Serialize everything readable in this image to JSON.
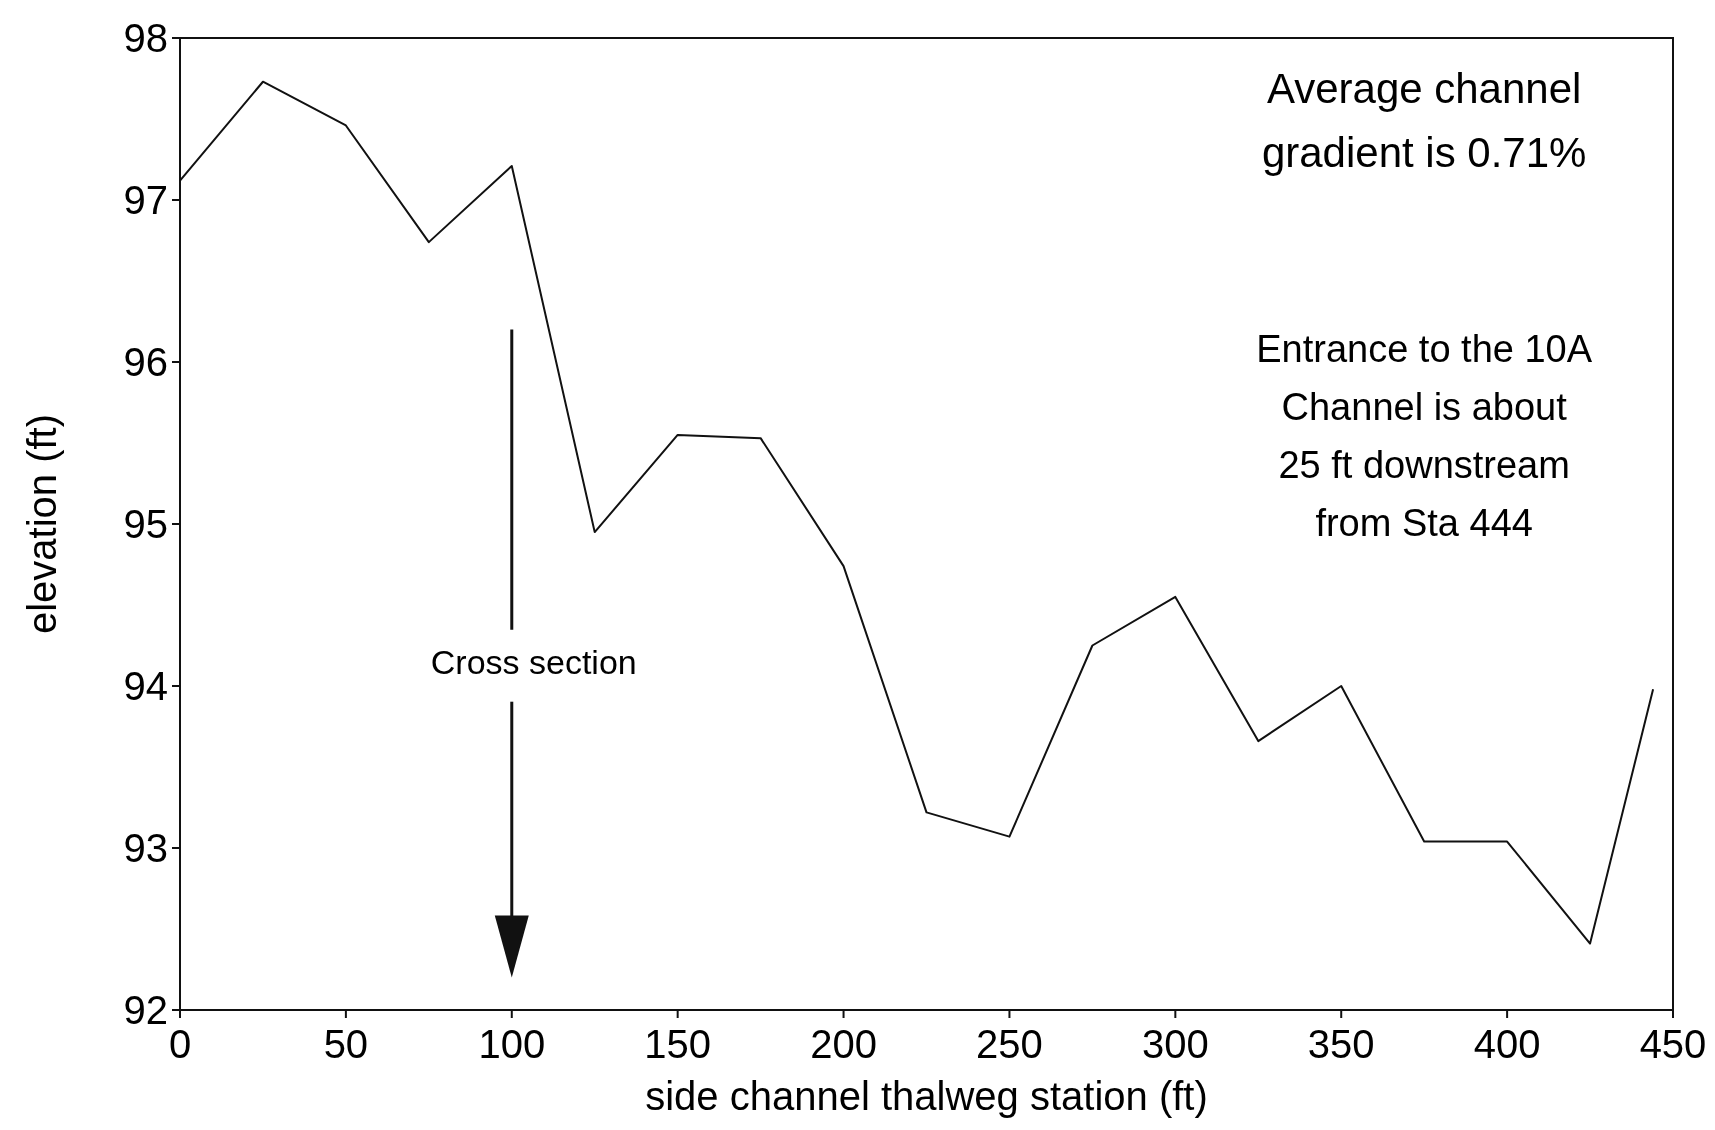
{
  "chart_data": {
    "type": "line",
    "xlabel": "side channel thalweg station (ft)",
    "ylabel": "elevation (ft)",
    "x": [
      0,
      25,
      50,
      75,
      100,
      125,
      150,
      175,
      200,
      225,
      250,
      275,
      300,
      325,
      350,
      375,
      400,
      425,
      444
    ],
    "series": [
      {
        "color": "#111111",
        "values": [
          97.12,
          97.73,
          97.46,
          96.74,
          97.21,
          94.95,
          95.55,
          95.53,
          94.74,
          93.22,
          93.07,
          94.25,
          94.55,
          93.66,
          94.0,
          93.04,
          93.04,
          92.41,
          93.98
        ]
      }
    ],
    "xlim": [
      0,
      450
    ],
    "xticks": [
      0,
      50,
      100,
      150,
      200,
      250,
      300,
      350,
      400,
      450
    ],
    "ylim": [
      92,
      98
    ],
    "yticks": [
      92,
      93,
      94,
      95,
      96,
      97,
      98
    ],
    "grid": false,
    "marker": "none",
    "line_style": "solid",
    "annotations": [
      "Cross section",
      "Average channel\ngradient is 0.71%",
      "Entrance to the 10A\nChannel is about\n25 ft downstream\nfrom Sta 444"
    ]
  }
}
